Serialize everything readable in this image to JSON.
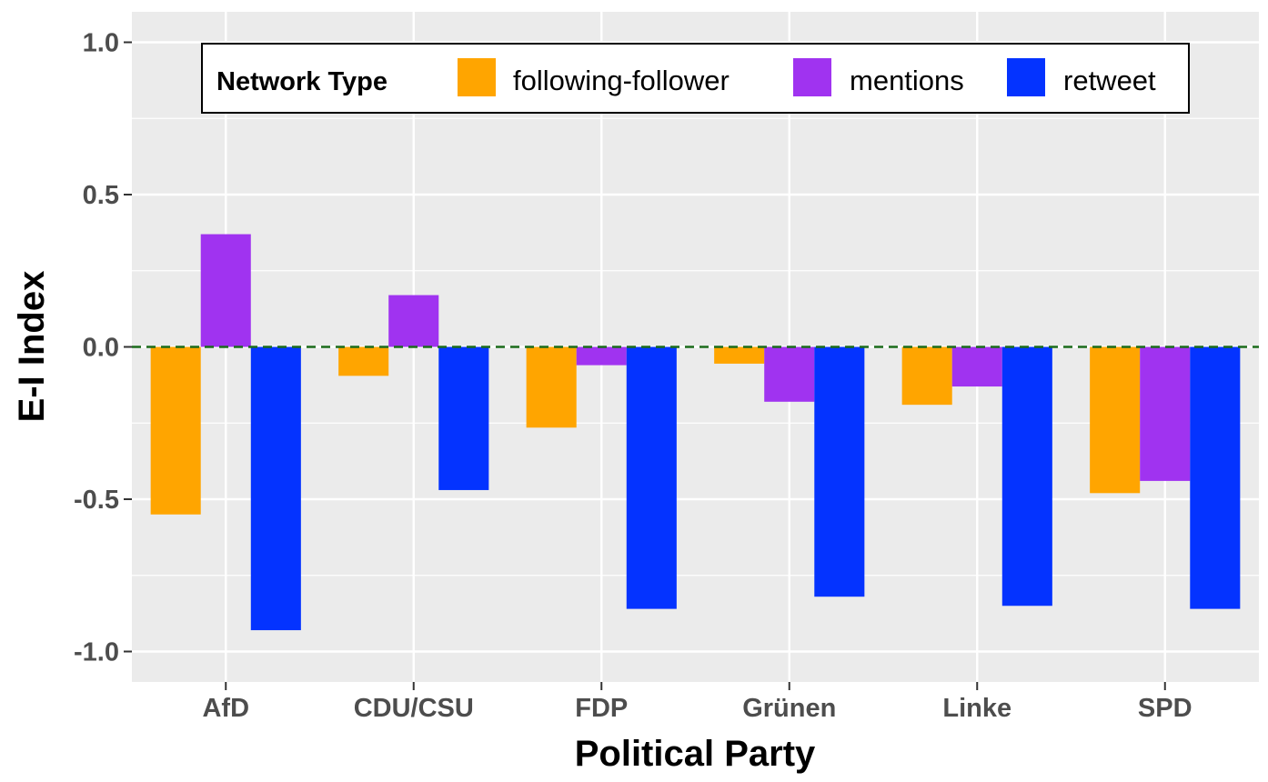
{
  "chart_data": {
    "type": "bar",
    "xlabel": "Political Party",
    "ylabel": "E-I Index",
    "categories": [
      "AfD",
      "CDU/CSU",
      "FDP",
      "Grünen",
      "Linke",
      "SPD"
    ],
    "series": [
      {
        "name": "following-follower",
        "color": "#FFA500",
        "values": [
          -0.55,
          -0.095,
          -0.265,
          -0.055,
          -0.19,
          -0.48
        ]
      },
      {
        "name": "mentions",
        "color": "#A033F0",
        "values": [
          0.37,
          0.17,
          -0.06,
          -0.18,
          -0.13,
          -0.44
        ]
      },
      {
        "name": "retweet",
        "color": "#0433FF",
        "values": [
          -0.93,
          -0.47,
          -0.86,
          -0.82,
          -0.85,
          -0.86
        ]
      }
    ],
    "ylim": [
      -1.1,
      1.1
    ],
    "yticks": [
      1.0,
      0.5,
      0.0,
      -0.5,
      -1.0
    ],
    "ytick_labels": [
      "1.0",
      "0.5",
      "0.0",
      "-0.5",
      "-1.0"
    ],
    "reference_line": {
      "y": 0,
      "style": "dashed",
      "color": "#1a6b1a"
    },
    "grid": true,
    "panel_background": "#EBEBEB",
    "legend": {
      "title": "Network Type",
      "position": "top-center"
    }
  }
}
